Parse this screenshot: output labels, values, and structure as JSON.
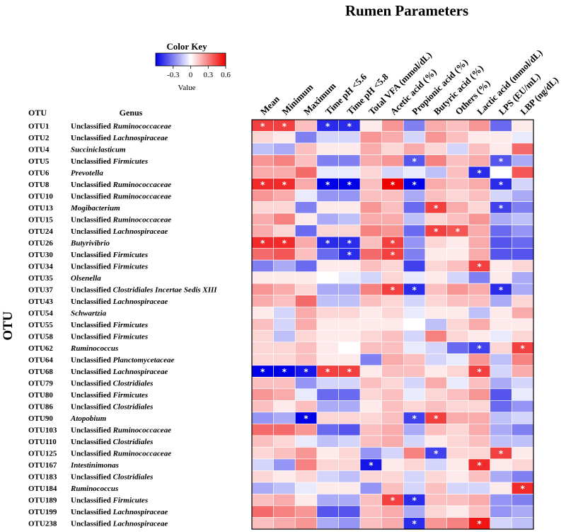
{
  "chart_data": {
    "type": "heatmap",
    "title": "Rumen Parameters",
    "row_axis_label": "OTU",
    "otu_header": "OTU",
    "genus_header": "Genus",
    "columns": [
      "Mean",
      "Minimum",
      "Maximum",
      "Time pH <5.6",
      "Time pH <5.8",
      "Total VFA (mmol/dL)",
      "Acetic acid (%)",
      "Propionic acid (%)",
      "Butyric acid (%)",
      "Others (%)",
      "Lactic acid (mmol/dL)",
      "LPS (EU/mL)",
      "LBP (ng/dL)"
    ],
    "rows": [
      {
        "otu": "OTU1",
        "prefix": "Unclassified",
        "taxon": "Ruminococcaceae"
      },
      {
        "otu": "OTU2",
        "prefix": "Unclassified",
        "taxon": "Lachnospiraceae"
      },
      {
        "otu": "OTU4",
        "prefix": "",
        "taxon": "Succiniclasticum"
      },
      {
        "otu": "OTU5",
        "prefix": "Unclassified",
        "taxon": "Firmicutes"
      },
      {
        "otu": "OTU6",
        "prefix": "",
        "taxon": "Prevotella"
      },
      {
        "otu": "OTU8",
        "prefix": "Unclassified",
        "taxon": "Ruminococcaceae"
      },
      {
        "otu": "OTU10",
        "prefix": "Unclassified",
        "taxon": "Ruminococcaceae"
      },
      {
        "otu": "OTU13",
        "prefix": "",
        "taxon": "Mogibacterium"
      },
      {
        "otu": "OTU15",
        "prefix": "Unclassified",
        "taxon": "Ruminococcaceae"
      },
      {
        "otu": "OTU24",
        "prefix": "Unclassified",
        "taxon": "Lachnospiraceae"
      },
      {
        "otu": "OTU26",
        "prefix": "",
        "taxon": "Butyrivibrio"
      },
      {
        "otu": "OTU30",
        "prefix": "Unclassified",
        "taxon": "Firmicutes"
      },
      {
        "otu": "OTU34",
        "prefix": "Unclassified",
        "taxon": "Firmicutes"
      },
      {
        "otu": "OTU35",
        "prefix": "",
        "taxon": "Olsenella"
      },
      {
        "otu": "OTU37",
        "prefix": "Unclassified",
        "taxon": "Clostridiales Incertae Sedis XIII"
      },
      {
        "otu": "OTU43",
        "prefix": "Unclassified",
        "taxon": "Lachnospiraceae"
      },
      {
        "otu": "OTU54",
        "prefix": "",
        "taxon": "Schwartzia"
      },
      {
        "otu": "OTU55",
        "prefix": "Unclassified",
        "taxon": "Firmicutes"
      },
      {
        "otu": "OTU58",
        "prefix": "Unclassified",
        "taxon": "Firmicutes"
      },
      {
        "otu": "OTU62",
        "prefix": "",
        "taxon": "Ruminococcus"
      },
      {
        "otu": "OTU64",
        "prefix": "Unclassified",
        "taxon": "Planctomycetaceae"
      },
      {
        "otu": "OTU68",
        "prefix": "Unclassified",
        "taxon": "Lachnospiraceae"
      },
      {
        "otu": "OTU79",
        "prefix": "Unclassified",
        "taxon": "Clostridiales"
      },
      {
        "otu": "OTU80",
        "prefix": "Unclassified",
        "taxon": "Firmicutes"
      },
      {
        "otu": "OTU86",
        "prefix": "Unclassified",
        "taxon": "Clostridiales"
      },
      {
        "otu": "OTU90",
        "prefix": "",
        "taxon": "Atopobium"
      },
      {
        "otu": "OTU103",
        "prefix": "Unclassified",
        "taxon": "Ruminococcaceae"
      },
      {
        "otu": "OTU110",
        "prefix": "Unclassified",
        "taxon": "Clostridiales"
      },
      {
        "otu": "OTU125",
        "prefix": "Unclassified",
        "taxon": "Ruminococcaceae"
      },
      {
        "otu": "OTU167",
        "prefix": "",
        "taxon": "Intestinimonas"
      },
      {
        "otu": "OTU183",
        "prefix": "Unclassified",
        "taxon": "Clostridiales"
      },
      {
        "otu": "OTU184",
        "prefix": "",
        "taxon": "Ruminococcus"
      },
      {
        "otu": "OTU189",
        "prefix": "Unclassified",
        "taxon": "Firmicutes"
      },
      {
        "otu": "OTU199",
        "prefix": "Unclassified",
        "taxon": "Lachnospiraceae"
      },
      {
        "otu": "OTU238",
        "prefix": "Unclassified",
        "taxon": "Lachnospiraceae"
      }
    ],
    "values": [
      [
        0.45,
        0.45,
        0.15,
        -0.5,
        -0.5,
        0.05,
        0.25,
        -0.3,
        0.2,
        0.15,
        0.25,
        -0.35,
        0.05
      ],
      [
        0.1,
        0.05,
        -0.3,
        -0.1,
        -0.1,
        0.25,
        0.2,
        -0.1,
        0.25,
        0.15,
        0.05,
        0.05,
        -0.05
      ],
      [
        -0.15,
        -0.2,
        0.15,
        0.05,
        0.05,
        0.2,
        0.1,
        0.2,
        0.1,
        -0.1,
        0.15,
        0.05,
        0.35
      ],
      [
        0.25,
        0.3,
        0.15,
        -0.3,
        -0.3,
        0.2,
        0.25,
        -0.4,
        0.3,
        0.15,
        0.2,
        -0.4,
        -0.2
      ],
      [
        0.2,
        0.2,
        0.35,
        -0.05,
        -0.05,
        0.1,
        -0.1,
        -0.05,
        -0.15,
        0.15,
        -0.5,
        0.0,
        0.4
      ],
      [
        0.5,
        0.5,
        0.2,
        -0.6,
        -0.6,
        0.15,
        0.6,
        -0.65,
        0.2,
        0.15,
        0.2,
        -0.5,
        -0.1
      ],
      [
        0.25,
        0.2,
        -0.05,
        -0.25,
        -0.25,
        0.15,
        0.15,
        -0.2,
        0.15,
        0.1,
        0.15,
        -0.1,
        -0.2
      ],
      [
        0.1,
        0.1,
        -0.3,
        0.05,
        0.05,
        0.25,
        0.15,
        -0.35,
        0.45,
        0.2,
        0.1,
        -0.45,
        -0.3
      ],
      [
        0.2,
        0.3,
        0.05,
        -0.2,
        -0.15,
        0.2,
        0.2,
        -0.15,
        0.1,
        0.15,
        0.25,
        -0.2,
        -0.15
      ],
      [
        0.2,
        0.1,
        -0.35,
        0.1,
        0.1,
        0.3,
        0.25,
        -0.35,
        0.45,
        0.4,
        0.2,
        -0.35,
        -0.25
      ],
      [
        0.5,
        0.5,
        0.2,
        -0.5,
        -0.5,
        0.15,
        0.45,
        -0.25,
        0.1,
        0.05,
        0.2,
        -0.4,
        -0.35
      ],
      [
        0.35,
        0.4,
        0.15,
        -0.35,
        -0.5,
        0.35,
        0.45,
        -0.3,
        0.05,
        0.05,
        0.2,
        -0.4,
        -0.4
      ],
      [
        -0.3,
        -0.2,
        -0.35,
        0.05,
        0.05,
        0.15,
        0.1,
        -0.45,
        0.1,
        0.15,
        0.45,
        0.05,
        0.1
      ],
      [
        0.05,
        0.05,
        0.05,
        0.0,
        -0.05,
        -0.1,
        0.1,
        -0.05,
        0.05,
        -0.1,
        -0.3,
        0.05,
        -0.2
      ],
      [
        0.25,
        0.2,
        0.1,
        -0.2,
        -0.2,
        0.3,
        0.45,
        -0.5,
        0.15,
        0.25,
        0.2,
        -0.5,
        -0.2
      ],
      [
        0.2,
        0.15,
        0.35,
        -0.15,
        -0.15,
        0.15,
        0.1,
        -0.1,
        0.1,
        0.15,
        0.15,
        -0.2,
        0.1
      ],
      [
        0.05,
        -0.1,
        0.2,
        0.1,
        0.1,
        0.05,
        0.1,
        -0.05,
        0.05,
        0.05,
        -0.15,
        0.05,
        0.2
      ],
      [
        0.15,
        -0.1,
        0.2,
        0.05,
        0.05,
        0.05,
        0.05,
        0.0,
        -0.15,
        0.1,
        0.2,
        0.05,
        0.05
      ],
      [
        0.1,
        -0.15,
        0.1,
        0.05,
        0.05,
        0.1,
        0.15,
        -0.1,
        0.3,
        0.1,
        0.05,
        -0.05,
        0.1
      ],
      [
        0.1,
        0.1,
        0.15,
        0.05,
        0.0,
        0.15,
        0.15,
        -0.05,
        -0.1,
        -0.35,
        -0.45,
        0.1,
        0.45
      ],
      [
        0.1,
        0.1,
        0.15,
        0.05,
        0.05,
        -0.3,
        0.2,
        0.15,
        -0.1,
        -0.05,
        0.25,
        -0.15,
        0.3
      ],
      [
        -0.6,
        -0.6,
        -0.55,
        0.45,
        0.45,
        0.05,
        0.15,
        0.15,
        0.05,
        0.1,
        0.45,
        -0.1,
        0.2
      ],
      [
        0.15,
        0.15,
        -0.25,
        -0.1,
        -0.1,
        0.15,
        0.1,
        -0.1,
        0.2,
        -0.05,
        0.15,
        -0.2,
        -0.1
      ],
      [
        0.25,
        0.2,
        -0.05,
        -0.35,
        -0.35,
        0.1,
        0.15,
        -0.05,
        0.1,
        0.15,
        0.25,
        -0.4,
        -0.05
      ],
      [
        0.15,
        0.05,
        0.15,
        -0.2,
        -0.2,
        0.05,
        0.15,
        0.1,
        0.15,
        0.1,
        0.1,
        -0.35,
        -0.25
      ],
      [
        -0.25,
        -0.2,
        -0.6,
        0.1,
        0.1,
        0.1,
        0.15,
        -0.45,
        0.45,
        0.2,
        0.2,
        -0.15,
        -0.1
      ],
      [
        0.35,
        0.35,
        0.25,
        -0.35,
        -0.4,
        0.15,
        0.2,
        -0.2,
        0.15,
        0.1,
        0.2,
        -0.2,
        -0.3
      ],
      [
        0.15,
        0.1,
        -0.05,
        -0.15,
        -0.1,
        0.15,
        0.2,
        -0.1,
        0.05,
        0.1,
        0.15,
        -0.15,
        -0.15
      ],
      [
        0.1,
        0.15,
        0.25,
        0.05,
        0.1,
        -0.25,
        -0.1,
        0.3,
        -0.45,
        0.1,
        0.1,
        0.45,
        0.05
      ],
      [
        -0.1,
        -0.25,
        0.3,
        0.1,
        0.1,
        -0.55,
        0.05,
        0.1,
        -0.1,
        0.05,
        0.5,
        0.05,
        0.1
      ],
      [
        0.1,
        0.05,
        0.1,
        -0.1,
        -0.15,
        0.1,
        0.1,
        -0.1,
        0.1,
        0.05,
        0.15,
        -0.2,
        -0.3
      ],
      [
        -0.2,
        -0.15,
        -0.05,
        0.05,
        0.05,
        -0.25,
        0.15,
        -0.1,
        0.15,
        -0.1,
        -0.1,
        0.05,
        0.5
      ],
      [
        0.15,
        0.2,
        0.05,
        -0.2,
        -0.2,
        0.15,
        0.45,
        -0.5,
        0.15,
        0.15,
        0.2,
        -0.25,
        -0.3
      ],
      [
        0.35,
        0.3,
        0.25,
        -0.4,
        -0.4,
        0.15,
        0.2,
        -0.2,
        0.1,
        0.05,
        0.15,
        -0.25,
        -0.2
      ],
      [
        0.15,
        0.2,
        0.25,
        -0.2,
        -0.25,
        0.15,
        0.2,
        -0.5,
        0.25,
        0.3,
        0.55,
        -0.1,
        -0.15
      ]
    ],
    "significant": [
      [
        0,
        0
      ],
      [
        0,
        1
      ],
      [
        0,
        3
      ],
      [
        0,
        4
      ],
      [
        3,
        7
      ],
      [
        3,
        11
      ],
      [
        4,
        10
      ],
      [
        5,
        0
      ],
      [
        5,
        1
      ],
      [
        5,
        3
      ],
      [
        5,
        4
      ],
      [
        5,
        6
      ],
      [
        5,
        7
      ],
      [
        5,
        11
      ],
      [
        7,
        8
      ],
      [
        7,
        11
      ],
      [
        9,
        8
      ],
      [
        9,
        9
      ],
      [
        10,
        0
      ],
      [
        10,
        1
      ],
      [
        10,
        3
      ],
      [
        10,
        4
      ],
      [
        10,
        6
      ],
      [
        11,
        4
      ],
      [
        11,
        6
      ],
      [
        12,
        10
      ],
      [
        14,
        6
      ],
      [
        14,
        7
      ],
      [
        14,
        11
      ],
      [
        19,
        10
      ],
      [
        19,
        12
      ],
      [
        21,
        0
      ],
      [
        21,
        1
      ],
      [
        21,
        2
      ],
      [
        21,
        3
      ],
      [
        21,
        4
      ],
      [
        21,
        10
      ],
      [
        25,
        2
      ],
      [
        25,
        7
      ],
      [
        25,
        8
      ],
      [
        28,
        8
      ],
      [
        28,
        11
      ],
      [
        29,
        5
      ],
      [
        29,
        10
      ],
      [
        31,
        12
      ],
      [
        32,
        6
      ],
      [
        32,
        7
      ],
      [
        34,
        7
      ],
      [
        34,
        10
      ]
    ],
    "significance_marker": "*",
    "legend": {
      "title": "Color Key",
      "label": "Value",
      "ticks": [
        "-0.3",
        "0",
        "0.3",
        "0.6"
      ],
      "range": [
        -0.6,
        0.6
      ],
      "colors": {
        "low": "#0000e6",
        "mid": "#ffffff",
        "high": "#ee0000"
      }
    }
  }
}
